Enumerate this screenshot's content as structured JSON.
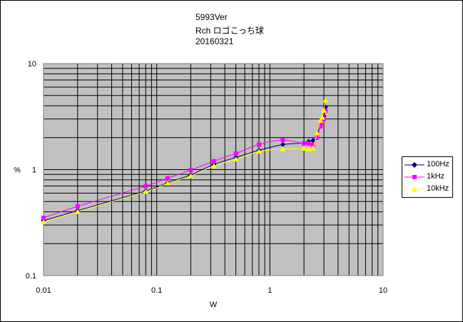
{
  "title_lines": [
    "5993Ver",
    "Rch ロゴこっち球",
    "20160321"
  ],
  "chart_data": {
    "type": "line",
    "x_scale": "log",
    "y_scale": "log",
    "xlim": [
      0.01,
      10
    ],
    "ylim": [
      0.1,
      10
    ],
    "x_tick_labels": [
      "0.01",
      "0.1",
      "1",
      "10"
    ],
    "y_tick_labels": [
      "0.1",
      "1",
      "10"
    ],
    "x_ticks": [
      0.01,
      0.1,
      1,
      10
    ],
    "y_ticks": [
      0.1,
      1,
      10
    ],
    "xlabel": "W",
    "ylabel": "%",
    "grid": true,
    "plot_background": "#c0c0c0",
    "legend_position": "right",
    "series": [
      {
        "name": "100Hz",
        "color": "#000080",
        "marker": "diamond",
        "x": [
          0.01,
          0.02,
          0.08,
          0.125,
          0.2,
          0.32,
          0.5,
          0.8,
          1.3,
          2.0,
          2.2,
          2.4,
          2.6,
          2.8,
          2.9,
          3.0,
          3.1
        ],
        "y": [
          0.33,
          0.41,
          0.63,
          0.75,
          0.89,
          1.12,
          1.3,
          1.52,
          1.72,
          1.78,
          1.84,
          1.88,
          2.1,
          2.8,
          2.95,
          3.2,
          3.9
        ]
      },
      {
        "name": "1kHz",
        "color": "#ff00ff",
        "marker": "square",
        "x": [
          0.01,
          0.02,
          0.08,
          0.125,
          0.2,
          0.32,
          0.5,
          0.8,
          1.3,
          2.0,
          2.2,
          2.4,
          2.6,
          2.8,
          2.9,
          3.0,
          3.1
        ],
        "y": [
          0.35,
          0.45,
          0.7,
          0.83,
          0.99,
          1.2,
          1.42,
          1.72,
          1.9,
          1.76,
          1.76,
          1.72,
          2.0,
          2.55,
          2.75,
          3.0,
          3.6
        ]
      },
      {
        "name": "10kHz",
        "color": "#ffff00",
        "marker": "triangle",
        "x": [
          0.01,
          0.02,
          0.08,
          0.125,
          0.2,
          0.32,
          0.5,
          0.8,
          1.3,
          2.0,
          2.2,
          2.4,
          2.6,
          2.8,
          2.9,
          3.0,
          3.1
        ],
        "y": [
          0.32,
          0.4,
          0.62,
          0.74,
          0.87,
          1.08,
          1.25,
          1.48,
          1.56,
          1.58,
          1.56,
          1.58,
          2.2,
          2.9,
          3.1,
          3.6,
          4.5
        ]
      }
    ]
  }
}
